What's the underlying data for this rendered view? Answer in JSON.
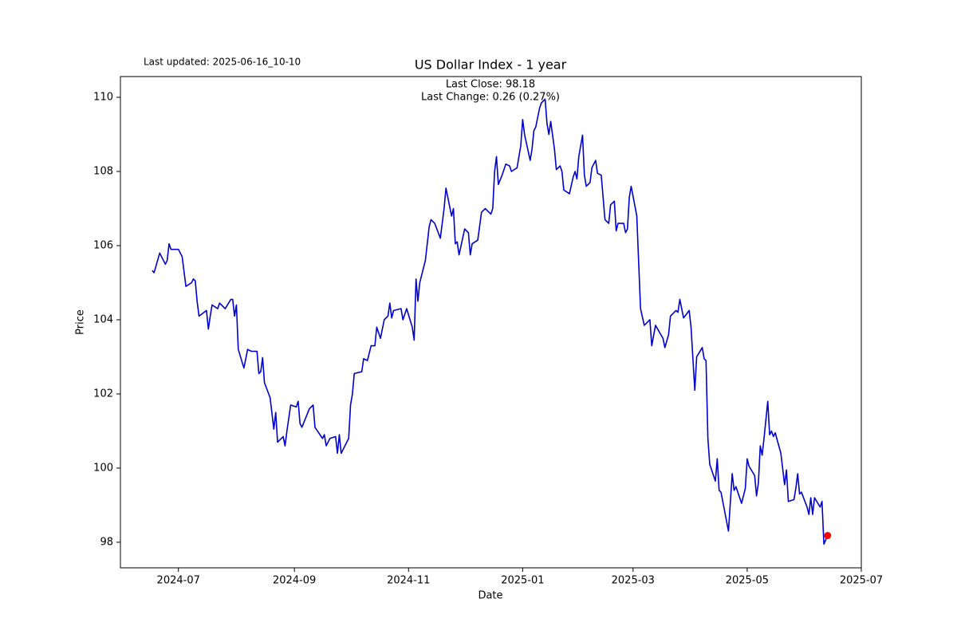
{
  "chart_data": {
    "type": "line",
    "title": "US Dollar Index - 1 year",
    "subtitle": "Last updated: 2025-06-16_10-10",
    "annotations": [
      "Last Close: 98.18",
      "Last Change: 0.26 (0.27%)"
    ],
    "x_label": "Date",
    "y_label": "Price",
    "xlim": [
      "2024-05-31",
      "2025-07-01"
    ],
    "xticks": [
      "2024-07",
      "2024-09",
      "2024-11",
      "2025-01",
      "2025-03",
      "2025-05",
      "2025-07"
    ],
    "ylim": [
      97.31,
      110.56
    ],
    "yticks": [
      98,
      100,
      102,
      104,
      106,
      108,
      110
    ],
    "grid": false,
    "last_point_color": "#ff0000",
    "x": [
      "2024-06-17",
      "2024-06-18",
      "2024-06-21",
      "2024-06-24",
      "2024-06-25",
      "2024-06-26",
      "2024-06-27",
      "2024-07-01",
      "2024-07-03",
      "2024-07-05",
      "2024-07-08",
      "2024-07-09",
      "2024-07-10",
      "2024-07-11",
      "2024-07-12",
      "2024-07-16",
      "2024-07-17",
      "2024-07-18",
      "2024-07-19",
      "2024-07-22",
      "2024-07-23",
      "2024-07-26",
      "2024-07-29",
      "2024-07-30",
      "2024-07-31",
      "2024-08-01",
      "2024-08-02",
      "2024-08-05",
      "2024-08-07",
      "2024-08-09",
      "2024-08-12",
      "2024-08-13",
      "2024-08-14",
      "2024-08-15",
      "2024-08-16",
      "2024-08-19",
      "2024-08-21",
      "2024-08-22",
      "2024-08-23",
      "2024-08-26",
      "2024-08-27",
      "2024-08-28",
      "2024-08-30",
      "2024-09-02",
      "2024-09-03",
      "2024-09-04",
      "2024-09-05",
      "2024-09-09",
      "2024-09-11",
      "2024-09-12",
      "2024-09-16",
      "2024-09-17",
      "2024-09-18",
      "2024-09-20",
      "2024-09-23",
      "2024-09-24",
      "2024-09-25",
      "2024-09-26",
      "2024-09-30",
      "2024-10-01",
      "2024-10-02",
      "2024-10-03",
      "2024-10-07",
      "2024-10-08",
      "2024-10-10",
      "2024-10-12",
      "2024-10-14",
      "2024-10-15",
      "2024-10-17",
      "2024-10-19",
      "2024-10-21",
      "2024-10-22",
      "2024-10-23",
      "2024-10-24",
      "2024-10-28",
      "2024-10-29",
      "2024-10-31",
      "2024-11-03",
      "2024-11-04",
      "2024-11-05",
      "2024-11-06",
      "2024-11-07",
      "2024-11-10",
      "2024-11-12",
      "2024-11-13",
      "2024-11-15",
      "2024-11-18",
      "2024-11-20",
      "2024-11-21",
      "2024-11-24",
      "2024-11-25",
      "2024-11-26",
      "2024-11-27",
      "2024-11-28",
      "2024-12-01",
      "2024-12-03",
      "2024-12-04",
      "2024-12-05",
      "2024-12-08",
      "2024-12-10",
      "2024-12-12",
      "2024-12-15",
      "2024-12-16",
      "2024-12-17",
      "2024-12-18",
      "2024-12-19",
      "2024-12-21",
      "2024-12-23",
      "2024-12-25",
      "2024-12-26",
      "2024-12-29",
      "2024-12-31",
      "2025-01-01",
      "2025-01-02",
      "2025-01-05",
      "2025-01-06",
      "2025-01-07",
      "2025-01-08",
      "2025-01-10",
      "2025-01-11",
      "2025-01-13",
      "2025-01-14",
      "2025-01-15",
      "2025-01-16",
      "2025-01-18",
      "2025-01-19",
      "2025-01-21",
      "2025-01-22",
      "2025-01-23",
      "2025-01-26",
      "2025-01-28",
      "2025-01-29",
      "2025-01-30",
      "2025-01-31",
      "2025-02-02",
      "2025-02-03",
      "2025-02-04",
      "2025-02-06",
      "2025-02-07",
      "2025-02-09",
      "2025-02-10",
      "2025-02-12",
      "2025-02-14",
      "2025-02-16",
      "2025-02-17",
      "2025-02-19",
      "2025-02-20",
      "2025-02-21",
      "2025-02-24",
      "2025-02-25",
      "2025-02-26",
      "2025-02-27",
      "2025-02-28",
      "2025-03-03",
      "2025-03-05",
      "2025-03-07",
      "2025-03-10",
      "2025-03-11",
      "2025-03-13",
      "2025-03-17",
      "2025-03-18",
      "2025-03-20",
      "2025-03-21",
      "2025-03-24",
      "2025-03-25",
      "2025-03-26",
      "2025-03-28",
      "2025-03-31",
      "2025-04-01",
      "2025-04-03",
      "2025-04-04",
      "2025-04-07",
      "2025-04-08",
      "2025-04-09",
      "2025-04-10",
      "2025-04-11",
      "2025-04-14",
      "2025-04-15",
      "2025-04-16",
      "2025-04-17",
      "2025-04-21",
      "2025-04-23",
      "2025-04-24",
      "2025-04-25",
      "2025-04-28",
      "2025-04-30",
      "2025-05-01",
      "2025-05-02",
      "2025-05-05",
      "2025-05-06",
      "2025-05-07",
      "2025-05-08",
      "2025-05-09",
      "2025-05-10",
      "2025-05-12",
      "2025-05-13",
      "2025-05-14",
      "2025-05-15",
      "2025-05-16",
      "2025-05-19",
      "2025-05-21",
      "2025-05-22",
      "2025-05-23",
      "2025-05-26",
      "2025-05-27",
      "2025-05-28",
      "2025-05-29",
      "2025-05-30",
      "2025-06-02",
      "2025-06-03",
      "2025-06-04",
      "2025-06-05",
      "2025-06-06",
      "2025-06-09",
      "2025-06-10",
      "2025-06-11",
      "2025-06-13"
    ],
    "series": [
      {
        "name": "Price",
        "color": "#0000cd",
        "values": [
          105.33,
          105.27,
          105.8,
          105.5,
          105.6,
          106.05,
          105.9,
          105.9,
          105.7,
          104.9,
          105.0,
          105.1,
          105.05,
          104.5,
          104.1,
          104.25,
          103.75,
          104.1,
          104.4,
          104.3,
          104.45,
          104.3,
          104.55,
          104.55,
          104.1,
          104.4,
          103.2,
          102.7,
          103.2,
          103.15,
          103.15,
          102.55,
          102.6,
          102.98,
          102.3,
          101.9,
          101.05,
          101.5,
          100.7,
          100.85,
          100.6,
          101.0,
          101.7,
          101.65,
          101.8,
          101.2,
          101.1,
          101.6,
          101.7,
          101.1,
          100.8,
          100.9,
          100.6,
          100.8,
          100.85,
          100.4,
          100.9,
          100.4,
          100.8,
          101.7,
          102.0,
          102.55,
          102.6,
          102.95,
          102.9,
          103.3,
          103.3,
          103.8,
          103.5,
          104.0,
          104.1,
          104.45,
          104.05,
          104.25,
          104.3,
          104.0,
          104.3,
          103.8,
          103.45,
          105.1,
          104.5,
          105.0,
          105.6,
          106.5,
          106.7,
          106.6,
          106.2,
          107.0,
          107.55,
          106.8,
          107.0,
          106.05,
          106.1,
          105.75,
          106.45,
          106.35,
          105.75,
          106.05,
          106.15,
          106.9,
          107.0,
          106.85,
          107.0,
          108.0,
          108.4,
          107.65,
          107.9,
          108.2,
          108.15,
          108.0,
          108.1,
          108.7,
          109.4,
          109.0,
          108.3,
          108.6,
          109.1,
          109.2,
          109.7,
          109.85,
          109.95,
          109.3,
          109.0,
          109.35,
          108.6,
          108.05,
          108.15,
          108.0,
          107.5,
          107.4,
          107.85,
          108.0,
          107.8,
          108.4,
          108.98,
          107.9,
          107.6,
          107.7,
          108.1,
          108.3,
          107.95,
          107.9,
          106.7,
          106.6,
          107.1,
          107.2,
          106.4,
          106.6,
          106.6,
          106.35,
          106.45,
          107.3,
          107.6,
          106.8,
          104.3,
          103.85,
          104.0,
          103.3,
          103.85,
          103.5,
          103.25,
          103.6,
          104.1,
          104.25,
          104.2,
          104.55,
          104.05,
          104.25,
          103.8,
          102.1,
          103.0,
          103.25,
          102.95,
          102.9,
          100.8,
          100.1,
          99.65,
          100.25,
          99.4,
          99.35,
          98.3,
          99.85,
          99.4,
          99.5,
          99.05,
          99.45,
          100.25,
          100.05,
          99.8,
          99.25,
          99.6,
          100.6,
          100.35,
          100.8,
          101.8,
          100.9,
          101.0,
          100.85,
          100.95,
          100.4,
          99.55,
          99.95,
          99.1,
          99.15,
          99.45,
          99.85,
          99.3,
          99.35,
          98.95,
          98.75,
          99.2,
          98.75,
          99.2,
          98.95,
          99.1,
          97.95,
          98.18
        ]
      }
    ]
  }
}
